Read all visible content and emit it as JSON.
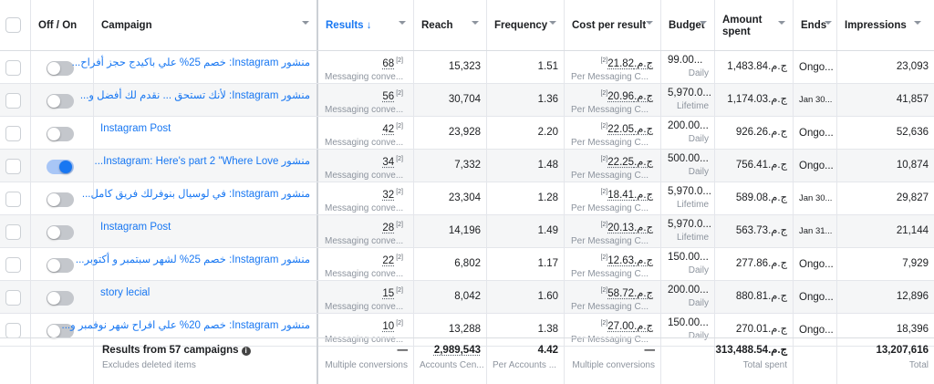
{
  "header": {
    "off_on": "Off / On",
    "campaign": "Campaign",
    "results": "Results",
    "results_arrow": "↓",
    "reach": "Reach",
    "frequency": "Frequency",
    "cost_per_result": "Cost per result",
    "budget": "Budget",
    "amount_spent_l1": "Amount",
    "amount_spent_l2": "spent",
    "ends": "Ends",
    "impressions": "Impressions"
  },
  "rows": [
    {
      "on": false,
      "campaign": "منشور Instagram: خصم 25% علي باكيدج حجز أفراح...",
      "results": "68",
      "fn": "[2]",
      "results_sub": "Messaging conve...",
      "reach": "15,323",
      "frequency": "1.51",
      "cpr": "ج.م.‏21.82",
      "cpr_sub": "Per Messaging C...",
      "budget": "99.00...",
      "budget_sub": "Daily",
      "spent": "ج.م.‏1,483.84",
      "ends": "Ongo...",
      "ends_small": false,
      "impressions": "23,093"
    },
    {
      "on": false,
      "campaign": "منشور Instagram: لأنك تستحق ... نقدم لك أفضل و...",
      "results": "56",
      "fn": "[2]",
      "results_sub": "Messaging conve...",
      "reach": "30,704",
      "frequency": "1.36",
      "cpr": "ج.م.‏20.96",
      "cpr_sub": "Per Messaging C...",
      "budget": "5,970.0...",
      "budget_sub": "Lifetime",
      "spent": "ج.م.‏1,174.03",
      "ends": "Jan 30...",
      "ends_small": true,
      "impressions": "41,857"
    },
    {
      "on": false,
      "campaign": "Instagram Post",
      "results": "42",
      "fn": "[2]",
      "results_sub": "Messaging conve...",
      "reach": "23,928",
      "frequency": "2.20",
      "cpr": "ج.م.‏22.05",
      "cpr_sub": "Per Messaging C...",
      "budget": "200.00...",
      "budget_sub": "Daily",
      "spent": "ج.م.‏926.26",
      "ends": "Ongo...",
      "ends_small": false,
      "impressions": "52,636"
    },
    {
      "on": true,
      "campaign": "منشور Instagram: Here's part 2 \"Where Love...",
      "results": "34",
      "fn": "[2]",
      "results_sub": "Messaging conve...",
      "reach": "7,332",
      "frequency": "1.48",
      "cpr": "ج.م.‏22.25",
      "cpr_sub": "Per Messaging C...",
      "budget": "500.00...",
      "budget_sub": "Daily",
      "spent": "ج.م.‏756.41",
      "ends": "Ongo...",
      "ends_small": false,
      "impressions": "10,874"
    },
    {
      "on": false,
      "campaign": "منشور Instagram: في لوسيال بنوفرلك فريق كامل...",
      "results": "32",
      "fn": "[2]",
      "results_sub": "Messaging conve...",
      "reach": "23,304",
      "frequency": "1.28",
      "cpr": "ج.م.‏18.41",
      "cpr_sub": "Per Messaging C...",
      "budget": "5,970.0...",
      "budget_sub": "Lifetime",
      "spent": "ج.م.‏589.08",
      "ends": "Jan 30...",
      "ends_small": true,
      "impressions": "29,827"
    },
    {
      "on": false,
      "campaign": "Instagram Post",
      "results": "28",
      "fn": "[2]",
      "results_sub": "Messaging conve...",
      "reach": "14,196",
      "frequency": "1.49",
      "cpr": "ج.م.‏20.13",
      "cpr_sub": "Per Messaging C...",
      "budget": "5,970.0...",
      "budget_sub": "Lifetime",
      "spent": "ج.م.‏563.73",
      "ends": "Jan 31...",
      "ends_small": true,
      "impressions": "21,144"
    },
    {
      "on": false,
      "campaign": "منشور Instagram: خصم 25% لشهر سبتمبر و أكتوبر...",
      "results": "22",
      "fn": "[2]",
      "results_sub": "Messaging conve...",
      "reach": "6,802",
      "frequency": "1.17",
      "cpr": "ج.م.‏12.63",
      "cpr_sub": "Per Messaging C...",
      "budget": "150.00...",
      "budget_sub": "Daily",
      "spent": "ج.م.‏277.86",
      "ends": "Ongo...",
      "ends_small": false,
      "impressions": "7,929"
    },
    {
      "on": false,
      "campaign": "story lecial",
      "results": "15",
      "fn": "[2]",
      "results_sub": "Messaging conve...",
      "reach": "8,042",
      "frequency": "1.60",
      "cpr": "ج.م.‏58.72",
      "cpr_sub": "Per Messaging C...",
      "budget": "200.00...",
      "budget_sub": "Daily",
      "spent": "ج.م.‏880.81",
      "ends": "Ongo...",
      "ends_small": false,
      "impressions": "12,896"
    },
    {
      "on": false,
      "campaign": "منشور Instagram: خصم 20% علي افراح شهر نوفمبر و...",
      "results": "10",
      "fn": "[2]",
      "results_sub": "Messaging conve...",
      "reach": "13,288",
      "frequency": "1.38",
      "cpr": "ج.م.‏27.00",
      "cpr_sub": "Per Messaging C...",
      "budget": "150.00...",
      "budget_sub": "Daily",
      "spent": "ج.م.‏270.01",
      "ends": "Ongo...",
      "ends_small": false,
      "impressions": "18,396"
    }
  ],
  "footer": {
    "title": "Results from 57 campaigns",
    "subtitle": "Excludes deleted items",
    "results": "—",
    "results_sub": "Multiple conversions",
    "reach": "2,989,543",
    "reach_sub": "Accounts Cen...",
    "frequency": "4.42",
    "frequency_sub": "Per Accounts ...",
    "cpr": "—",
    "cpr_sub": "Multiple conversions",
    "spent": "ج.م.‏313,488.54",
    "spent_sub": "Total spent",
    "impressions": "13,207,616",
    "impressions_sub": "Total"
  },
  "colors": {
    "link": "#1877f2",
    "toggle_on": "#1877f2",
    "muted": "#8d949e"
  }
}
